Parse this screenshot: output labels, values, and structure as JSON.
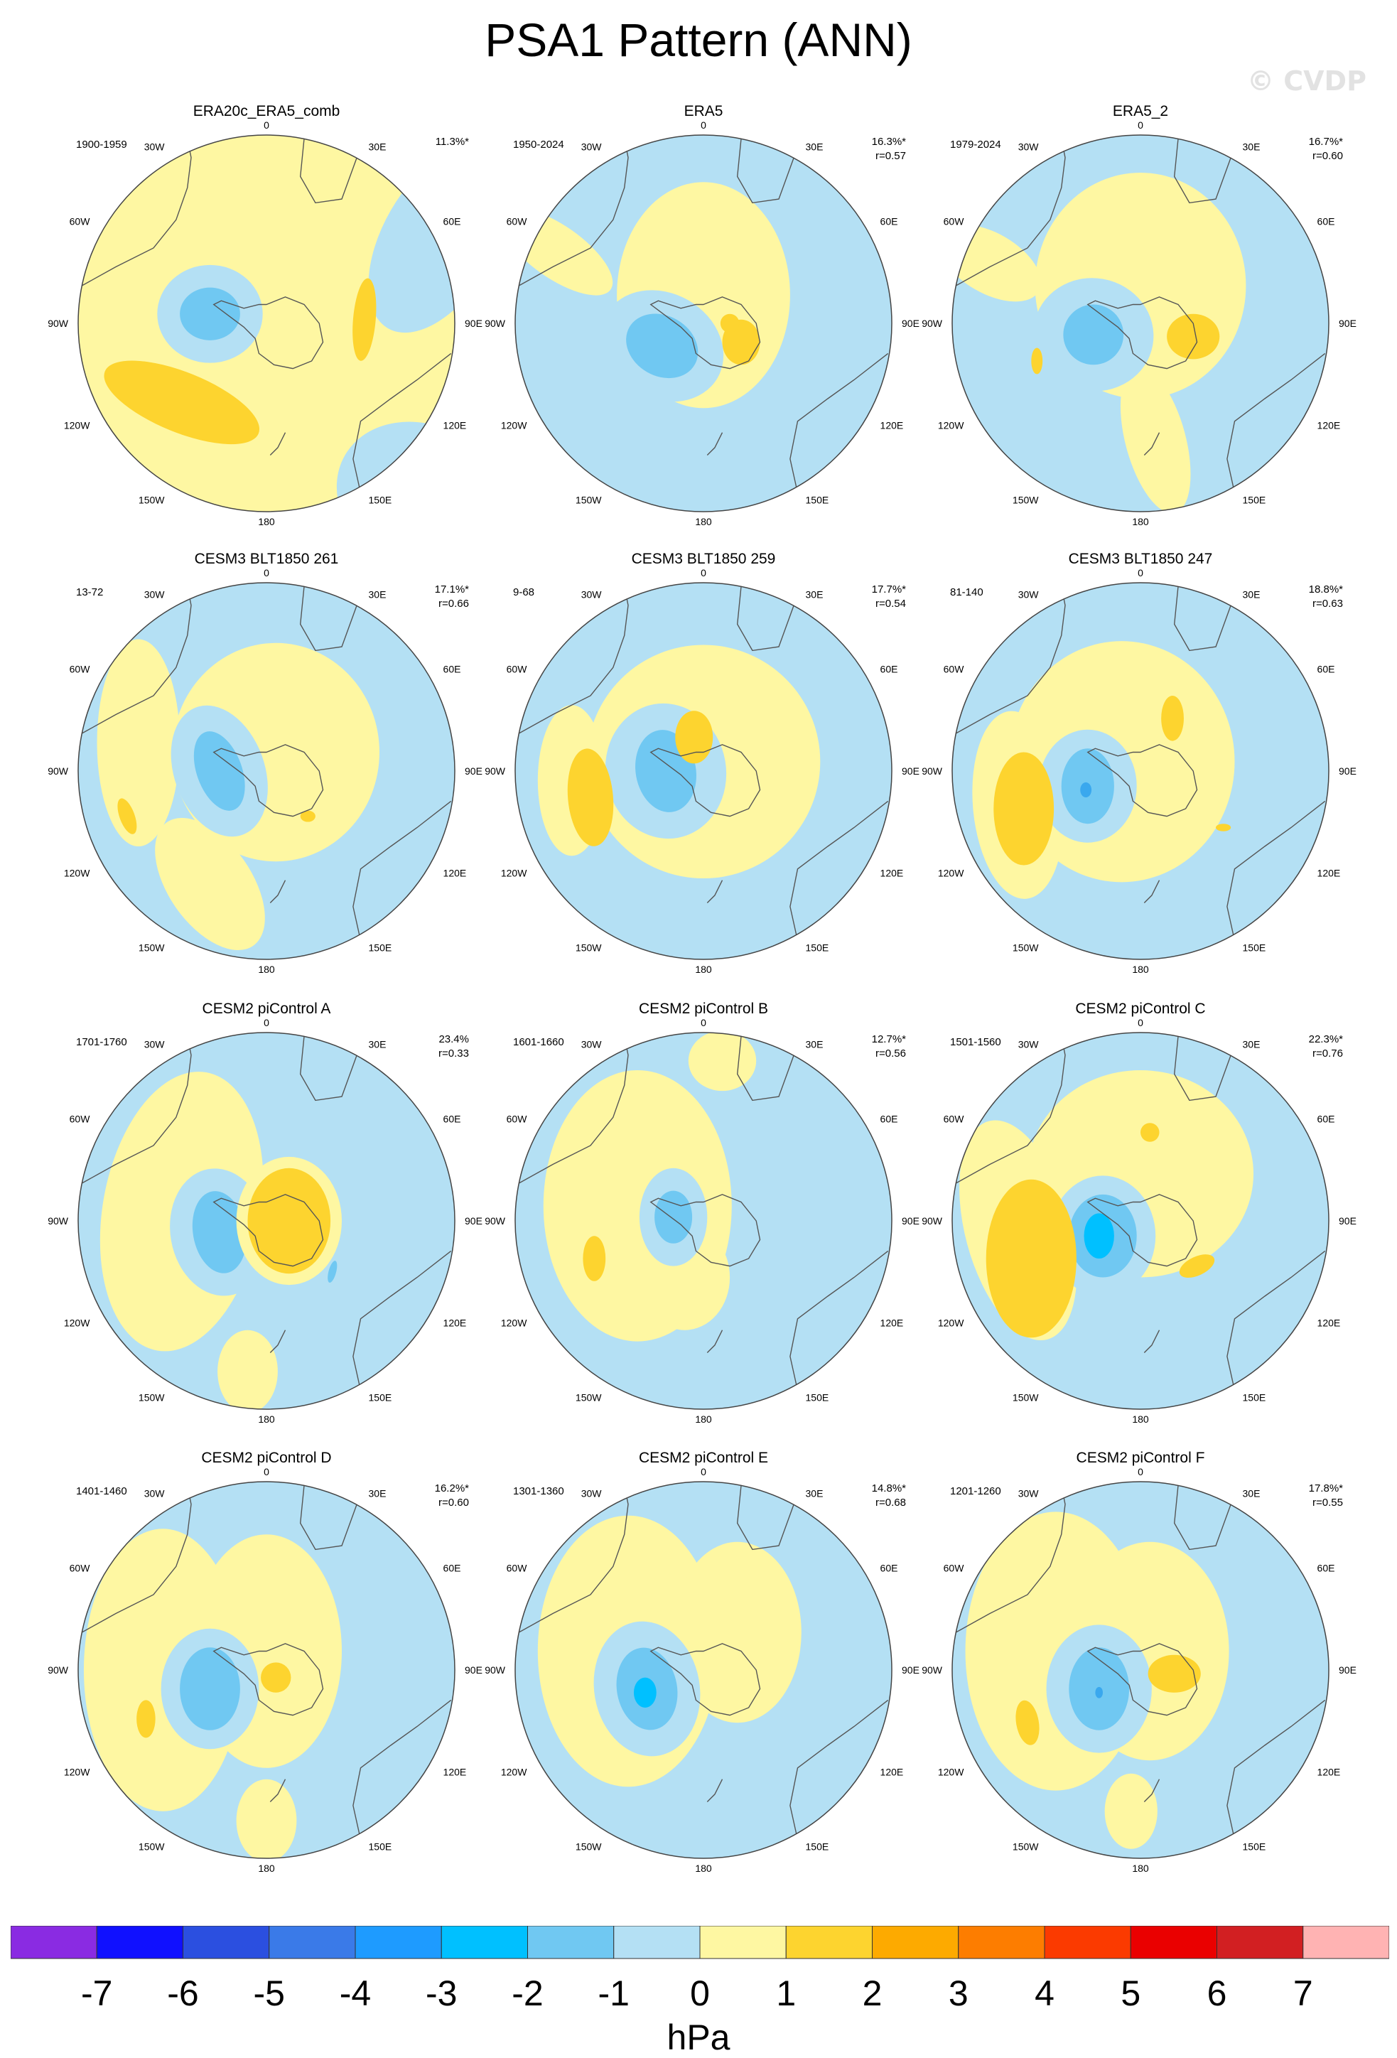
{
  "title": "PSA1 Pattern (ANN)",
  "watermark": "© CVDP",
  "lon_labels": [
    "0",
    "30E",
    "60E",
    "90E",
    "120E",
    "150E",
    "180",
    "150W",
    "120W",
    "90W",
    "60W",
    "30W"
  ],
  "panels": [
    {
      "title": "ERA20c_ERA5_comb",
      "years": "1900-1959",
      "pct": "11.3%*",
      "r": ""
    },
    {
      "title": "ERA5",
      "years": "1950-2024",
      "pct": "16.3%*",
      "r": "r=0.57"
    },
    {
      "title": "ERA5_2",
      "years": "1979-2024",
      "pct": "16.7%*",
      "r": "r=0.60"
    },
    {
      "title": "CESM3 BLT1850 261",
      "years": "13-72",
      "pct": "17.1%*",
      "r": "r=0.66"
    },
    {
      "title": "CESM3 BLT1850 259",
      "years": "9-68",
      "pct": "17.7%*",
      "r": "r=0.54"
    },
    {
      "title": "CESM3 BLT1850 247",
      "years": "81-140",
      "pct": "18.8%*",
      "r": "r=0.63"
    },
    {
      "title": "CESM2 piControl A",
      "years": "1701-1760",
      "pct": "23.4%",
      "r": "r=0.33"
    },
    {
      "title": "CESM2 piControl B",
      "years": "1601-1660",
      "pct": "12.7%*",
      "r": "r=0.56"
    },
    {
      "title": "CESM2 piControl C",
      "years": "1501-1560",
      "pct": "22.3%*",
      "r": "r=0.76"
    },
    {
      "title": "CESM2 piControl D",
      "years": "1401-1460",
      "pct": "16.2%*",
      "r": "r=0.60"
    },
    {
      "title": "CESM2 piControl E",
      "years": "1301-1360",
      "pct": "14.8%*",
      "r": "r=0.68"
    },
    {
      "title": "CESM2 piControl F",
      "years": "1201-1260",
      "pct": "17.8%*",
      "r": "r=0.55"
    }
  ],
  "colorbar": {
    "labels": [
      "-7",
      "-6",
      "-5",
      "-4",
      "-3",
      "-2",
      "-1",
      "0",
      "1",
      "2",
      "3",
      "4",
      "5",
      "6",
      "7"
    ],
    "colors": [
      "#8a2be2",
      "#1010ff",
      "#2b4fe0",
      "#3a7ae8",
      "#1e9bff",
      "#00c0ff",
      "#70c8f2",
      "#b4e0f4",
      "#fef7a2",
      "#fdd42f",
      "#fdaa00",
      "#fd7d00",
      "#fb3a00",
      "#ea0000",
      "#d21f22",
      "#ffb3b3"
    ],
    "unit": "hPa"
  },
  "chart_data": {
    "type": "heatmap",
    "title": "PSA1 Pattern (ANN)",
    "projection": "south polar stereographic",
    "variable_unit": "hPa",
    "contour_levels": [
      -7,
      -6,
      -5,
      -4,
      -3,
      -2,
      -1,
      0,
      1,
      2,
      3,
      4,
      5,
      6,
      7
    ],
    "panels": [
      {
        "name": "ERA20c_ERA5_comb",
        "period": "1900-1959",
        "variance_explained": "11.3%*",
        "pattern_correlation": null,
        "min_hPa": -2,
        "max_hPa": 2
      },
      {
        "name": "ERA5",
        "period": "1950-2024",
        "variance_explained": "16.3%*",
        "pattern_correlation": 0.57,
        "min_hPa": -2,
        "max_hPa": 2
      },
      {
        "name": "ERA5_2",
        "period": "1979-2024",
        "variance_explained": "16.7%*",
        "pattern_correlation": 0.6,
        "min_hPa": -2,
        "max_hPa": 2
      },
      {
        "name": "CESM3 BLT1850 261",
        "period": "13-72",
        "variance_explained": "17.1%*",
        "pattern_correlation": 0.66,
        "min_hPa": -2,
        "max_hPa": 2
      },
      {
        "name": "CESM3 BLT1850 259",
        "period": "9-68",
        "variance_explained": "17.7%*",
        "pattern_correlation": 0.54,
        "min_hPa": -2,
        "max_hPa": 2
      },
      {
        "name": "CESM3 BLT1850 247",
        "period": "81-140",
        "variance_explained": "18.8%*",
        "pattern_correlation": 0.63,
        "min_hPa": -3,
        "max_hPa": 2
      },
      {
        "name": "CESM2 piControl A",
        "period": "1701-1760",
        "variance_explained": "23.4%",
        "pattern_correlation": 0.33,
        "min_hPa": -2,
        "max_hPa": 2
      },
      {
        "name": "CESM2 piControl B",
        "period": "1601-1660",
        "variance_explained": "12.7%*",
        "pattern_correlation": 0.56,
        "min_hPa": -2,
        "max_hPa": 2
      },
      {
        "name": "CESM2 piControl C",
        "period": "1501-1560",
        "variance_explained": "22.3%*",
        "pattern_correlation": 0.76,
        "min_hPa": -3,
        "max_hPa": 2
      },
      {
        "name": "CESM2 piControl D",
        "period": "1401-1460",
        "variance_explained": "16.2%*",
        "pattern_correlation": 0.6,
        "min_hPa": -2,
        "max_hPa": 2
      },
      {
        "name": "CESM2 piControl E",
        "period": "1301-1360",
        "variance_explained": "14.8%*",
        "pattern_correlation": 0.68,
        "min_hPa": -3,
        "max_hPa": 1
      },
      {
        "name": "CESM2 piControl F",
        "period": "1201-1260",
        "variance_explained": "17.8%*",
        "pattern_correlation": 0.55,
        "min_hPa": -3,
        "max_hPa": 2
      }
    ]
  }
}
